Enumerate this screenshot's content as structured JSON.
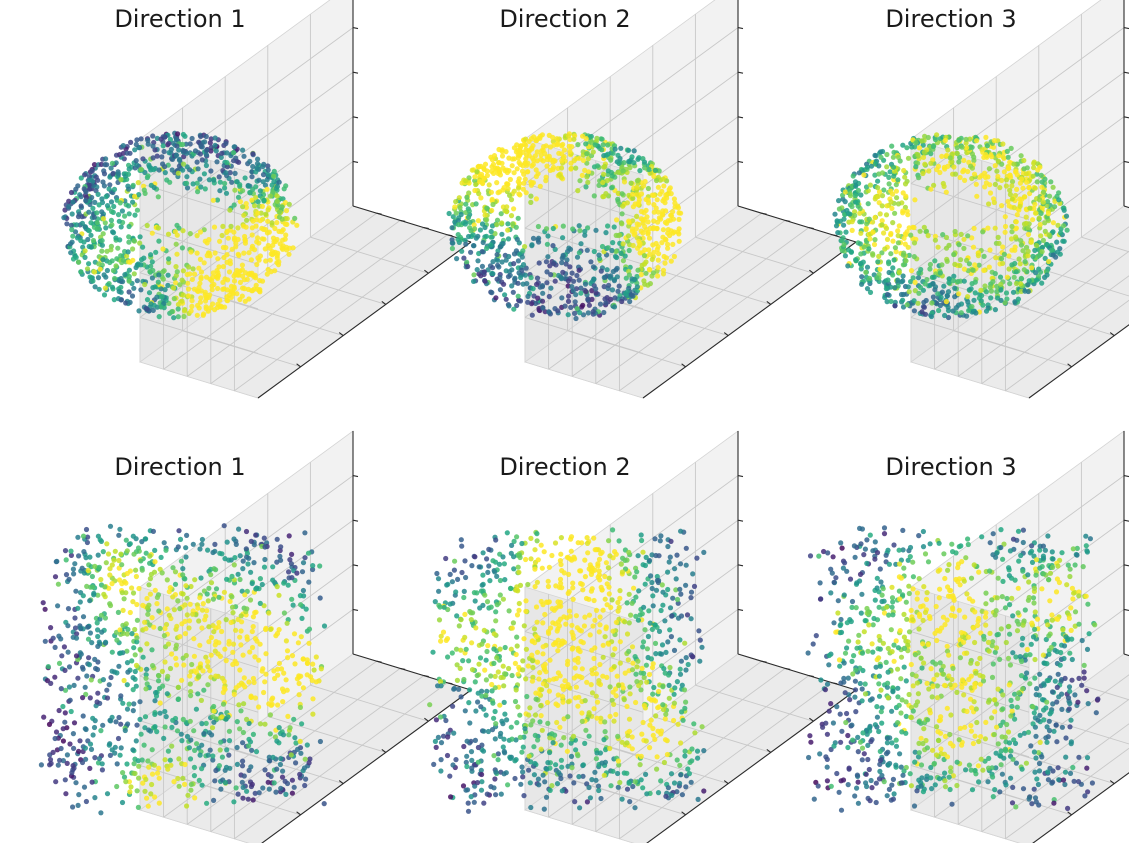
{
  "chart_data": [
    {
      "type": "scatter",
      "title": "Direction 1",
      "shape": "hemisphere",
      "colormap": "viridis",
      "grid": true,
      "tick_labels": false
    },
    {
      "type": "scatter",
      "title": "Direction 2",
      "shape": "hemisphere",
      "colormap": "viridis",
      "grid": true,
      "tick_labels": false
    },
    {
      "type": "scatter",
      "title": "Direction 3",
      "shape": "hemisphere",
      "colormap": "viridis",
      "grid": true,
      "tick_labels": false
    },
    {
      "type": "scatter",
      "title": "Direction 1",
      "shape": "cube",
      "colormap": "viridis",
      "grid": true,
      "tick_labels": false
    },
    {
      "type": "scatter",
      "title": "Direction 2",
      "shape": "cube",
      "colormap": "viridis",
      "grid": true,
      "tick_labels": false
    },
    {
      "type": "scatter",
      "title": "Direction 3",
      "shape": "cube",
      "colormap": "viridis",
      "grid": true,
      "tick_labels": false
    }
  ]
}
